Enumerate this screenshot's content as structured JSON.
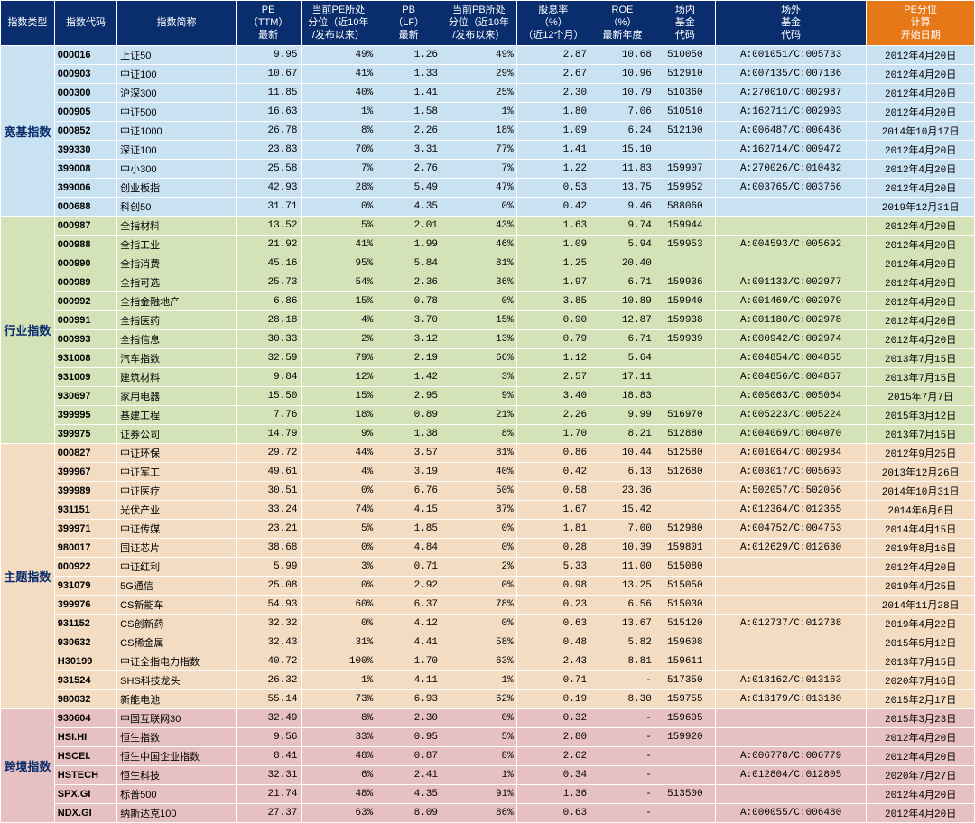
{
  "header": {
    "cat": "指数类型",
    "code": "指数代码",
    "name": "指数简称",
    "pe": "PE<br>（TTM）<br>最新",
    "pep": "当前PE所处<br>分位（近10年<br>/发布以来）",
    "pb": "PB<br>（LF）<br>最新",
    "pbp": "当前PB所处<br>分位（近10年<br>/发布以来）",
    "div": "股息率<br>（%）<br>（近12个月）",
    "roe": "ROE<br>（%）<br>最新年度",
    "in": "场内<br>基金<br>代码",
    "out": "场外<br>基金<br>代码",
    "date": "PE分位<br>计算<br>开始日期"
  },
  "groups": [
    {
      "cat": "宽基指数",
      "color": "#c9e2f1",
      "rows": [
        {
          "code": "000016",
          "name": "上证50",
          "pe": "9.95",
          "pep": "49%",
          "pb": "1.26",
          "pbp": "49%",
          "div": "2.87",
          "roe": "10.68",
          "in": "510050",
          "out": "A:001051/C:005733",
          "date": "2012年4月20日"
        },
        {
          "code": "000903",
          "name": "中证100",
          "pe": "10.67",
          "pep": "41%",
          "pb": "1.33",
          "pbp": "29%",
          "div": "2.67",
          "roe": "10.96",
          "in": "512910",
          "out": "A:007135/C:007136",
          "date": "2012年4月20日"
        },
        {
          "code": "000300",
          "name": "沪深300",
          "pe": "11.85",
          "pep": "40%",
          "pb": "1.41",
          "pbp": "25%",
          "div": "2.30",
          "roe": "10.79",
          "in": "510360",
          "out": "A:270010/C:002987",
          "date": "2012年4月20日"
        },
        {
          "code": "000905",
          "name": "中证500",
          "pe": "16.63",
          "pep": "1%",
          "pb": "1.58",
          "pbp": "1%",
          "div": "1.80",
          "roe": "7.06",
          "in": "510510",
          "out": "A:162711/C:002903",
          "date": "2012年4月20日"
        },
        {
          "code": "000852",
          "name": "中证1000",
          "pe": "26.78",
          "pep": "8%",
          "pb": "2.26",
          "pbp": "18%",
          "div": "1.09",
          "roe": "6.24",
          "in": "512100",
          "out": "A:006487/C:006486",
          "date": "2014年10月17日"
        },
        {
          "code": "399330",
          "name": "深证100",
          "pe": "23.83",
          "pep": "70%",
          "pb": "3.31",
          "pbp": "77%",
          "div": "1.41",
          "roe": "15.10",
          "in": "",
          "out": "A:162714/C:009472",
          "date": "2012年4月20日"
        },
        {
          "code": "399008",
          "name": "中小300",
          "pe": "25.58",
          "pep": "7%",
          "pb": "2.76",
          "pbp": "7%",
          "div": "1.22",
          "roe": "11.83",
          "in": "159907",
          "out": "A:270026/C:010432",
          "date": "2012年4月20日"
        },
        {
          "code": "399006",
          "name": "创业板指",
          "pe": "42.93",
          "pep": "28%",
          "pb": "5.49",
          "pbp": "47%",
          "div": "0.53",
          "roe": "13.75",
          "in": "159952",
          "out": "A:003765/C:003766",
          "date": "2012年4月20日"
        },
        {
          "code": "000688",
          "name": "科创50",
          "pe": "31.71",
          "pep": "0%",
          "pb": "4.35",
          "pbp": "0%",
          "div": "0.42",
          "roe": "9.46",
          "in": "588060",
          "out": "",
          "date": "2019年12月31日"
        }
      ]
    },
    {
      "cat": "行业指数",
      "color": "#d4e2b8",
      "rows": [
        {
          "code": "000987",
          "name": "全指材料",
          "pe": "13.52",
          "pep": "5%",
          "pb": "2.01",
          "pbp": "43%",
          "div": "1.63",
          "roe": "9.74",
          "in": "159944",
          "out": "",
          "date": "2012年4月20日"
        },
        {
          "code": "000988",
          "name": "全指工业",
          "pe": "21.92",
          "pep": "41%",
          "pb": "1.99",
          "pbp": "46%",
          "div": "1.09",
          "roe": "5.94",
          "in": "159953",
          "out": "A:004593/C:005692",
          "date": "2012年4月20日"
        },
        {
          "code": "000990",
          "name": "全指消费",
          "pe": "45.16",
          "pep": "95%",
          "pb": "5.84",
          "pbp": "81%",
          "div": "1.25",
          "roe": "20.40",
          "in": "",
          "out": "",
          "date": "2012年4月20日"
        },
        {
          "code": "000989",
          "name": "全指可选",
          "pe": "25.73",
          "pep": "54%",
          "pb": "2.36",
          "pbp": "36%",
          "div": "1.97",
          "roe": "6.71",
          "in": "159936",
          "out": "A:001133/C:002977",
          "date": "2012年4月20日"
        },
        {
          "code": "000992",
          "name": "全指金融地产",
          "pe": "6.86",
          "pep": "15%",
          "pb": "0.78",
          "pbp": "0%",
          "div": "3.85",
          "roe": "10.89",
          "in": "159940",
          "out": "A:001469/C:002979",
          "date": "2012年4月20日"
        },
        {
          "code": "000991",
          "name": "全指医药",
          "pe": "28.18",
          "pep": "4%",
          "pb": "3.70",
          "pbp": "15%",
          "div": "0.90",
          "roe": "12.87",
          "in": "159938",
          "out": "A:001180/C:002978",
          "date": "2012年4月20日"
        },
        {
          "code": "000993",
          "name": "全指信息",
          "pe": "30.33",
          "pep": "2%",
          "pb": "3.12",
          "pbp": "13%",
          "div": "0.79",
          "roe": "6.71",
          "in": "159939",
          "out": "A:000942/C:002974",
          "date": "2012年4月20日"
        },
        {
          "code": "931008",
          "name": "汽车指数",
          "pe": "32.59",
          "pep": "79%",
          "pb": "2.19",
          "pbp": "66%",
          "div": "1.12",
          "roe": "5.64",
          "in": "",
          "out": "A:004854/C:004855",
          "date": "2013年7月15日"
        },
        {
          "code": "931009",
          "name": "建筑材料",
          "pe": "9.84",
          "pep": "12%",
          "pb": "1.42",
          "pbp": "3%",
          "div": "2.57",
          "roe": "17.11",
          "in": "",
          "out": "A:004856/C:004857",
          "date": "2013年7月15日"
        },
        {
          "code": "930697",
          "name": "家用电器",
          "pe": "15.50",
          "pep": "15%",
          "pb": "2.95",
          "pbp": "9%",
          "div": "3.40",
          "roe": "18.83",
          "in": "",
          "out": "A:005063/C:005064",
          "date": "2015年7月7日"
        },
        {
          "code": "399995",
          "name": "基建工程",
          "pe": "7.76",
          "pep": "18%",
          "pb": "0.89",
          "pbp": "21%",
          "div": "2.26",
          "roe": "9.99",
          "in": "516970",
          "out": "A:005223/C:005224",
          "date": "2015年3月12日"
        },
        {
          "code": "399975",
          "name": "证券公司",
          "pe": "14.79",
          "pep": "9%",
          "pb": "1.38",
          "pbp": "8%",
          "div": "1.70",
          "roe": "8.21",
          "in": "512880",
          "out": "A:004069/C:004070",
          "date": "2013年7月15日"
        }
      ]
    },
    {
      "cat": "主题指数",
      "color": "#f3dcc2",
      "rows": [
        {
          "code": "000827",
          "name": "中证环保",
          "pe": "29.72",
          "pep": "44%",
          "pb": "3.57",
          "pbp": "81%",
          "div": "0.86",
          "roe": "10.44",
          "in": "512580",
          "out": "A:001064/C:002984",
          "date": "2012年9月25日"
        },
        {
          "code": "399967",
          "name": "中证军工",
          "pe": "49.61",
          "pep": "4%",
          "pb": "3.19",
          "pbp": "40%",
          "div": "0.42",
          "roe": "6.13",
          "in": "512680",
          "out": "A:003017/C:005693",
          "date": "2013年12月26日"
        },
        {
          "code": "399989",
          "name": "中证医疗",
          "pe": "30.51",
          "pep": "0%",
          "pb": "6.76",
          "pbp": "50%",
          "div": "0.58",
          "roe": "23.36",
          "in": "",
          "out": "A:502057/C:502056",
          "date": "2014年10月31日"
        },
        {
          "code": "931151",
          "name": "光伏产业",
          "pe": "33.24",
          "pep": "74%",
          "pb": "4.15",
          "pbp": "87%",
          "div": "1.67",
          "roe": "15.42",
          "in": "",
          "out": "A:012364/C:012365",
          "date": "2014年6月6日"
        },
        {
          "code": "399971",
          "name": "中证传媒",
          "pe": "23.21",
          "pep": "5%",
          "pb": "1.85",
          "pbp": "0%",
          "div": "1.81",
          "roe": "7.00",
          "in": "512980",
          "out": "A:004752/C:004753",
          "date": "2014年4月15日"
        },
        {
          "code": "980017",
          "name": "国证芯片",
          "pe": "38.68",
          "pep": "0%",
          "pb": "4.84",
          "pbp": "0%",
          "div": "0.28",
          "roe": "10.39",
          "in": "159801",
          "out": "A:012629/C:012630",
          "date": "2019年8月16日"
        },
        {
          "code": "000922",
          "name": "中证红利",
          "pe": "5.99",
          "pep": "3%",
          "pb": "0.71",
          "pbp": "2%",
          "div": "5.33",
          "roe": "11.00",
          "in": "515080",
          "out": "",
          "date": "2012年4月20日"
        },
        {
          "code": "931079",
          "name": "5G通信",
          "pe": "25.08",
          "pep": "0%",
          "pb": "2.92",
          "pbp": "0%",
          "div": "0.98",
          "roe": "13.25",
          "in": "515050",
          "out": "",
          "date": "2019年4月25日"
        },
        {
          "code": "399976",
          "name": "CS新能车",
          "pe": "54.93",
          "pep": "60%",
          "pb": "6.37",
          "pbp": "78%",
          "div": "0.23",
          "roe": "6.56",
          "in": "515030",
          "out": "",
          "date": "2014年11月28日"
        },
        {
          "code": "931152",
          "name": "CS创新药",
          "pe": "32.32",
          "pep": "0%",
          "pb": "4.12",
          "pbp": "0%",
          "div": "0.63",
          "roe": "13.67",
          "in": "515120",
          "out": "A:012737/C:012738",
          "date": "2019年4月22日"
        },
        {
          "code": "930632",
          "name": "CS稀金属",
          "pe": "32.43",
          "pep": "31%",
          "pb": "4.41",
          "pbp": "58%",
          "div": "0.48",
          "roe": "5.82",
          "in": "159608",
          "out": "",
          "date": "2015年5月12日"
        },
        {
          "code": "H30199",
          "name": "中证全指电力指数",
          "pe": "40.72",
          "pep": "100%",
          "pb": "1.70",
          "pbp": "63%",
          "div": "2.43",
          "roe": "8.81",
          "in": "159611",
          "out": "",
          "date": "2013年7月15日"
        },
        {
          "code": "931524",
          "name": "SHS科技龙头",
          "pe": "26.32",
          "pep": "1%",
          "pb": "4.11",
          "pbp": "1%",
          "div": "0.71",
          "roe": "-",
          "in": "517350",
          "out": "A:013162/C:013163",
          "date": "2020年7月16日"
        },
        {
          "code": "980032",
          "name": "新能电池",
          "pe": "55.14",
          "pep": "73%",
          "pb": "6.93",
          "pbp": "62%",
          "div": "0.19",
          "roe": "8.30",
          "in": "159755",
          "out": "A:013179/C:013180",
          "date": "2015年2月17日"
        }
      ]
    },
    {
      "cat": "跨境指数",
      "color": "#e7c1c1",
      "rows": [
        {
          "code": "930604",
          "name": "中国互联网30",
          "pe": "32.49",
          "pep": "8%",
          "pb": "2.30",
          "pbp": "0%",
          "div": "0.32",
          "roe": "-",
          "in": "159605",
          "out": "",
          "date": "2015年3月23日"
        },
        {
          "code": "HSI.HI",
          "name": "恒生指数",
          "pe": "9.56",
          "pep": "33%",
          "pb": "0.95",
          "pbp": "5%",
          "div": "2.80",
          "roe": "-",
          "in": "159920",
          "out": "",
          "date": "2012年4月20日"
        },
        {
          "code": "HSCEI.",
          "name": "恒生中国企业指数",
          "pe": "8.41",
          "pep": "48%",
          "pb": "0.87",
          "pbp": "8%",
          "div": "2.62",
          "roe": "-",
          "in": "",
          "out": "A:006778/C:006779",
          "date": "2012年4月20日"
        },
        {
          "code": "HSTECH",
          "name": "恒生科技",
          "pe": "32.31",
          "pep": "6%",
          "pb": "2.41",
          "pbp": "1%",
          "div": "0.34",
          "roe": "-",
          "in": "",
          "out": "A:012804/C:012805",
          "date": "2020年7月27日"
        },
        {
          "code": "SPX.GI",
          "name": "标普500",
          "pe": "21.74",
          "pep": "48%",
          "pb": "4.35",
          "pbp": "91%",
          "div": "1.36",
          "roe": "-",
          "in": "513500",
          "out": "",
          "date": "2012年4月20日"
        },
        {
          "code": "NDX.GI",
          "name": "纳斯达克100",
          "pe": "27.37",
          "pep": "63%",
          "pb": "8.09",
          "pbp": "86%",
          "div": "0.63",
          "roe": "-",
          "in": "",
          "out": "A:000055/C:006480",
          "date": "2012年4月20日"
        }
      ]
    }
  ]
}
